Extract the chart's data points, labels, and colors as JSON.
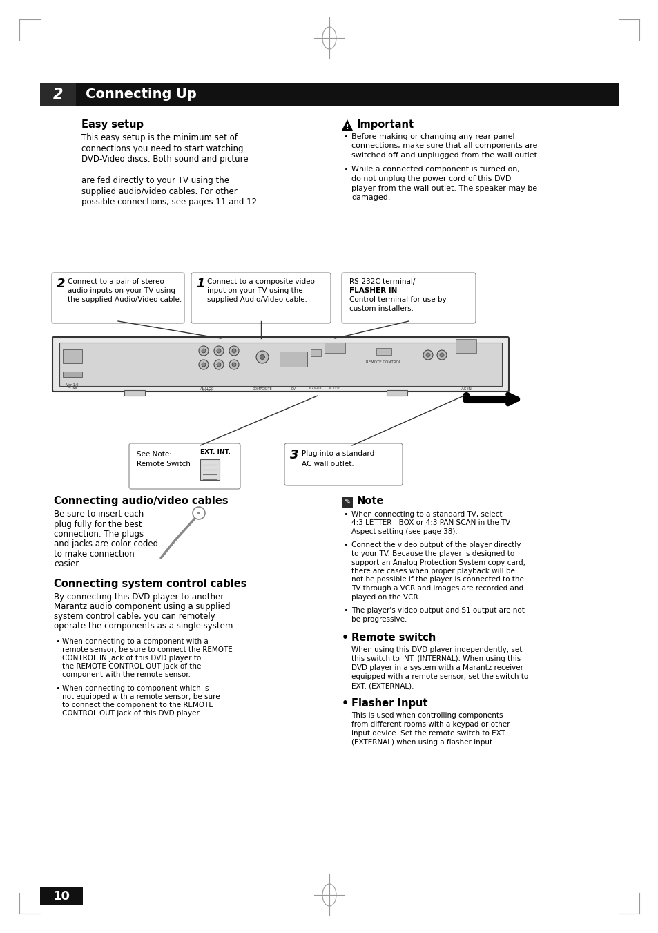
{
  "page_bg": "#ffffff",
  "header_bg": "#111111",
  "header_number": "2",
  "header_title": "Connecting Up",
  "section1_title": "Easy setup",
  "section1_body_lines": [
    "This easy setup is the minimum set of",
    "connections you need to start watching",
    "DVD-Video discs. Both sound and picture",
    "",
    "are fed directly to your TV using the",
    "supplied audio/video cables. For other",
    "possible connections, see pages 11 and 12."
  ],
  "important_title": "Important",
  "important_bullets": [
    [
      "Before making or changing any rear panel",
      "connections, make sure that all components are",
      "switched off and unplugged from the wall outlet."
    ],
    [
      "While a connected component is turned on,",
      "do not unplug the power cord of this DVD",
      "player from the wall outlet. The speaker may be",
      "damaged."
    ]
  ],
  "callout1_num": "2",
  "callout1_lines": [
    "Connect to a pair of stereo",
    "audio inputs on your TV using",
    "the supplied Audio/Video cable."
  ],
  "callout2_num": "1",
  "callout2_lines": [
    "Connect to a composite video",
    "input on your TV using the",
    "supplied Audio/Video cable."
  ],
  "callout3_lines": [
    "RS-232C terminal/",
    "FLASHER IN",
    "Control terminal for use by",
    "custom installers."
  ],
  "remote_switch_line1": "See Note:",
  "remote_switch_line2": "Remote Switch",
  "ext_int_label": "EXT. INT.",
  "callout_ac_num": "3",
  "callout_ac_lines": [
    "Plug into a standard",
    "AC wall outlet."
  ],
  "section2_title": "Connecting audio/video cables",
  "section2_body_lines": [
    "Be sure to insert each",
    "plug fully for the best",
    "connection. The plugs",
    "and jacks are color-coded",
    "to make connection",
    "easier."
  ],
  "section3_title": "Connecting system control cables",
  "section3_body_lines": [
    "By connecting this DVD player to another",
    "Marantz audio component using a supplied",
    "system control cable, you can remotely",
    "operate the components as a single system."
  ],
  "section3_bullets": [
    [
      [
        "When connecting to a component with a",
        "normal"
      ],
      [
        "remote sensor, be sure to connect the ",
        "normal"
      ],
      [
        "REMOTE",
        "bold"
      ],
      [
        "",
        "normal"
      ],
      [
        "CONTROL IN",
        "bold"
      ],
      [
        " jack of this DVD player to",
        "normal"
      ],
      [
        "",
        "normal"
      ],
      [
        "the ",
        "normal"
      ],
      [
        "REMOTE CONTROL OUT",
        "bold"
      ],
      [
        " jack of the",
        "normal"
      ],
      [
        "",
        "normal"
      ],
      [
        "component with the remote sensor.",
        "normal"
      ]
    ],
    [
      [
        "When connecting to component which is",
        "normal"
      ],
      [
        "not equipped with a remote sensor, be sure",
        "normal"
      ],
      [
        "to connect the component to the ",
        "normal"
      ],
      [
        "REMOTE",
        "bold"
      ],
      [
        "",
        "normal"
      ],
      [
        "CONTROL OUT",
        "bold"
      ],
      [
        " jack of this DVD player.",
        "normal"
      ]
    ]
  ],
  "section3_bullet1_lines": [
    "When connecting to a component with a",
    "remote sensor, be sure to connect the REMOTE",
    "CONTROL IN jack of this DVD player to",
    "the REMOTE CONTROL OUT jack of the",
    "component with the remote sensor."
  ],
  "section3_bullet2_lines": [
    "When connecting to component which is",
    "not equipped with a remote sensor, be sure",
    "to connect the component to the REMOTE",
    "CONTROL OUT jack of this DVD player."
  ],
  "note_title": "Note",
  "note_bullet1_lines": [
    "When connecting to a standard TV, select",
    "4:3 LETTER - BOX or 4:3 PAN SCAN in the TV",
    "Aspect setting (see page 38)."
  ],
  "note_bullet2_lines": [
    "Connect the video output of the player directly",
    "to your TV. Because the player is designed to",
    "support an Analog Protection System copy card,",
    "there are cases when proper playback will be",
    "not be possible if the player is connected to the",
    "TV through a VCR and images are recorded and",
    "played on the VCR."
  ],
  "note_bullet3_lines": [
    "The player's video output and S1 output are not",
    "be progressive."
  ],
  "remote_switch_title": "Remote switch",
  "remote_switch_body_lines": [
    "When using this DVD player independently, set",
    "this switch to INT. (INTERNAL). When using this",
    "DVD player in a system with a Marantz receiver",
    "equipped with a remote sensor, set the switch to",
    "EXT. (EXTERNAL)."
  ],
  "flasher_title": "Flasher Input",
  "flasher_body_lines": [
    "This is used when controlling components",
    "from different rooms with a keypad or other",
    "input device. Set the remote switch to EXT.",
    "(EXTERNAL) when using a flasher input."
  ],
  "page_number": "10"
}
